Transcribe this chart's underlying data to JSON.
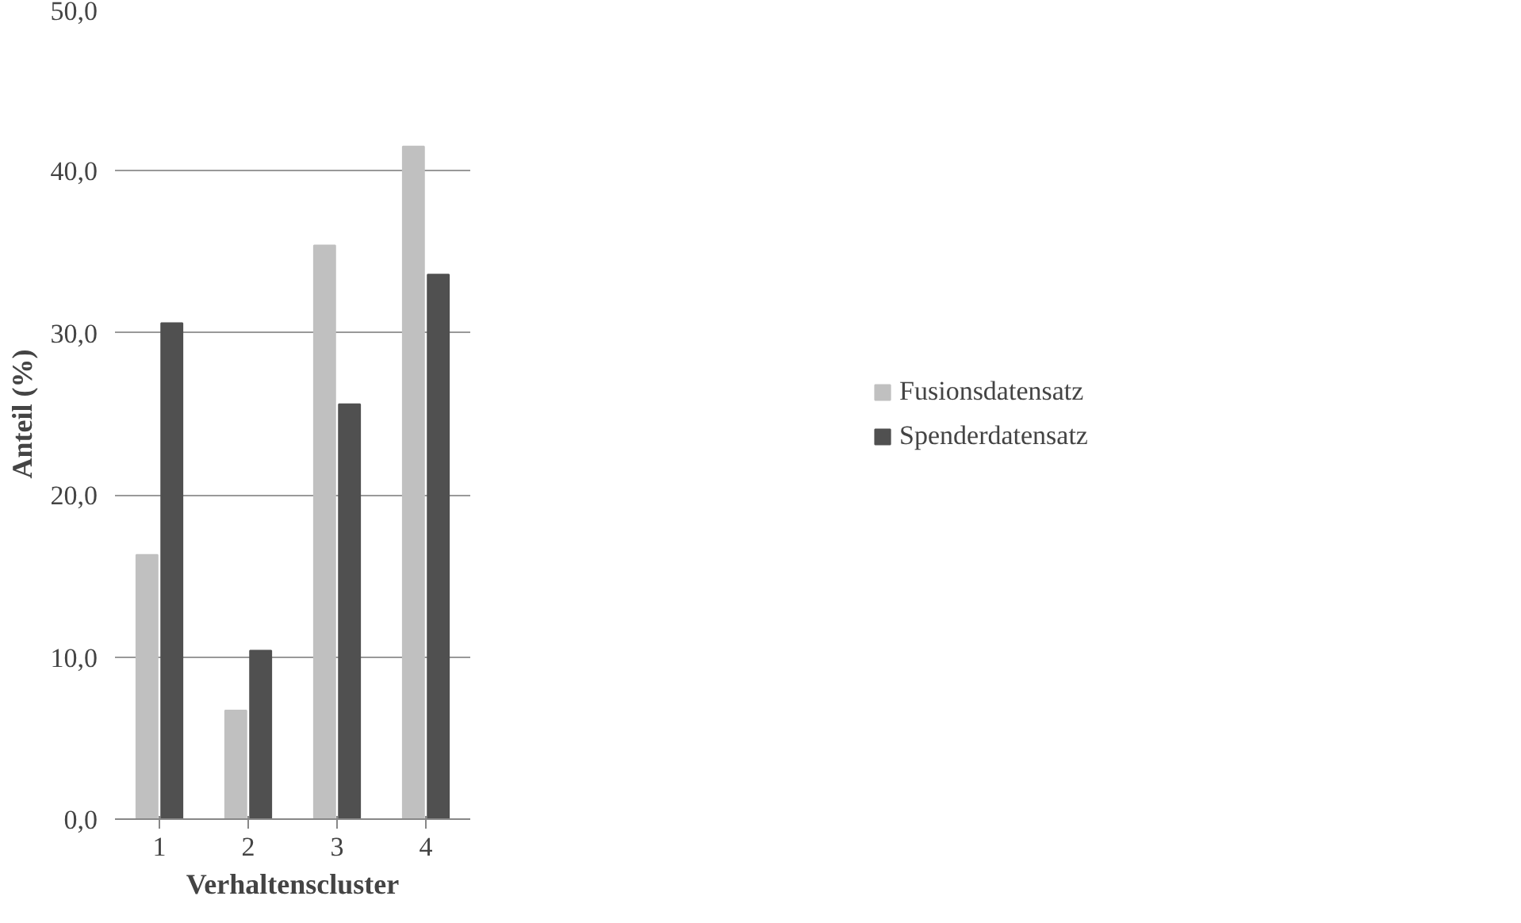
{
  "chart_data": {
    "type": "bar",
    "xlabel": "Verhaltenscluster",
    "ylabel": "Anteil (%)",
    "categories": [
      "1",
      "2",
      "3",
      "4"
    ],
    "series": [
      {
        "name": "Fusionsdatensatz",
        "color": "#c0c0c0",
        "values": [
          16.3,
          6.7,
          35.4,
          41.5
        ]
      },
      {
        "name": "Spenderdatensatz",
        "color": "#505050",
        "values": [
          30.6,
          10.4,
          25.6,
          33.6
        ]
      }
    ],
    "ylim": [
      0,
      50
    ],
    "yticks": [
      {
        "value": 0,
        "label": "0,0"
      },
      {
        "value": 10,
        "label": "10,0"
      },
      {
        "value": 20,
        "label": "20,0"
      },
      {
        "value": 30,
        "label": "30,0"
      },
      {
        "value": 40,
        "label": "40,0"
      },
      {
        "value": 50,
        "label": "50,0"
      }
    ],
    "grid": "y",
    "legend": "right"
  }
}
